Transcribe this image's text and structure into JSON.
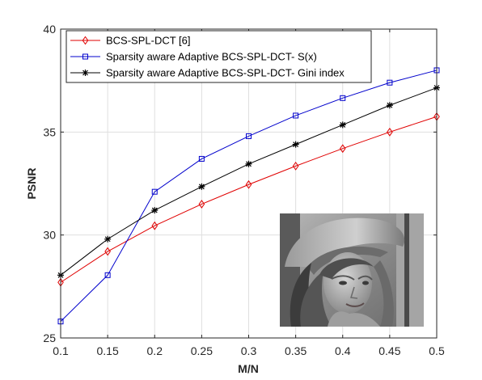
{
  "chart_data": {
    "type": "line",
    "title": "",
    "xlabel": "M/N",
    "ylabel": "PSNR",
    "xlim": [
      0.1,
      0.5
    ],
    "ylim": [
      25,
      40
    ],
    "x": [
      0.1,
      0.15,
      0.2,
      0.25,
      0.3,
      0.35,
      0.4,
      0.45,
      0.5
    ],
    "x_tick_labels": [
      "0.1",
      "0.15",
      "0.2",
      "0.25",
      "0.3",
      "0.35",
      "0.4",
      "0.45",
      "0.5"
    ],
    "y_ticks": [
      25,
      30,
      35,
      40
    ],
    "y_tick_labels": [
      "25",
      "30",
      "35",
      "40"
    ],
    "grid": true,
    "legend_position": "top-left",
    "series": [
      {
        "name": "BCS-SPL-DCT [6]",
        "color": "#e00000",
        "marker": "diamond",
        "values": [
          27.7,
          29.2,
          30.45,
          31.5,
          32.45,
          33.35,
          34.2,
          35.0,
          35.75
        ]
      },
      {
        "name": "Sparsity aware Adaptive BCS-SPL-DCT- S(x)",
        "color": "#0000cc",
        "marker": "square",
        "values": [
          25.8,
          28.05,
          32.1,
          33.7,
          34.8,
          35.8,
          36.65,
          37.4,
          38.0
        ]
      },
      {
        "name": "Sparsity aware Adaptive BCS-SPL-DCT- Gini index",
        "color": "#000000",
        "marker": "asterisk",
        "values": [
          28.05,
          29.8,
          31.2,
          32.35,
          33.45,
          34.4,
          35.35,
          36.3,
          37.15
        ]
      }
    ],
    "inset_image": "grayscale-portrait-photo"
  }
}
